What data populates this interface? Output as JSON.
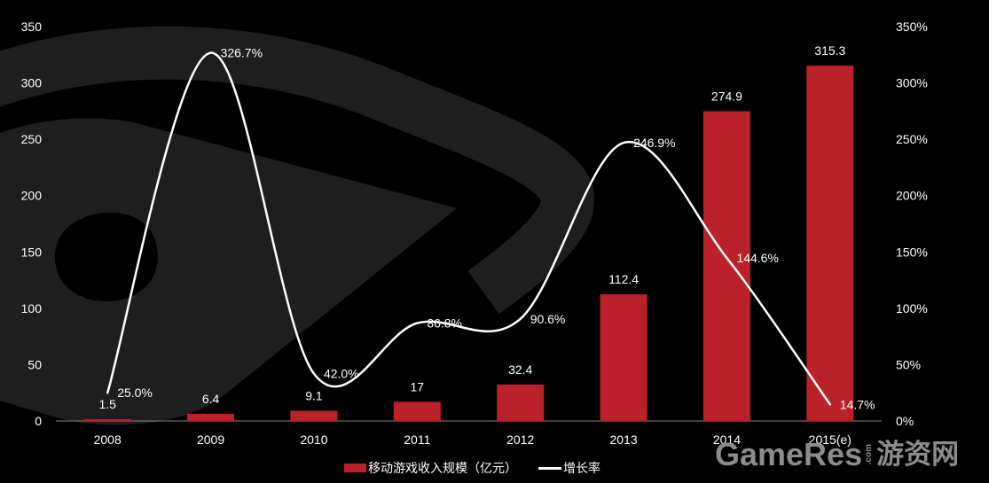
{
  "chart_data": {
    "type": "bar",
    "title": "",
    "xlabel": "",
    "ylabel": "",
    "categories": [
      "2008",
      "2009",
      "2010",
      "2011",
      "2012",
      "2013",
      "2014",
      "2015(e)"
    ],
    "y_left": {
      "min": 0,
      "max": 350,
      "ticks": [
        0,
        50,
        100,
        150,
        200,
        250,
        300,
        350
      ],
      "tick_labels": [
        "0",
        "50",
        "100",
        "150",
        "200",
        "250",
        "300",
        "350"
      ]
    },
    "y_right": {
      "min": 0,
      "max": 350,
      "unit": "%",
      "ticks": [
        0,
        50,
        100,
        150,
        200,
        250,
        300,
        350
      ],
      "tick_labels": [
        "0%",
        "50%",
        "100%",
        "150%",
        "200%",
        "250%",
        "300%",
        "350%"
      ]
    },
    "series": [
      {
        "name": "移动游戏收入规模（亿元）",
        "type": "bar",
        "axis": "left",
        "values": [
          1.5,
          6.4,
          9.1,
          17,
          32.4,
          112.4,
          274.9,
          315.3
        ],
        "labels": [
          "1.5",
          "6.4",
          "9.1",
          "17",
          "32.4",
          "112.4",
          "274.9",
          "315.3"
        ]
      },
      {
        "name": "增长率",
        "type": "line",
        "axis": "right",
        "smooth": true,
        "values": [
          25.0,
          326.7,
          42.0,
          86.8,
          90.6,
          246.9,
          144.6,
          14.7
        ],
        "labels": [
          "25.0%",
          "326.7%",
          "42.0%",
          "86.8%",
          "90.6%",
          "246.9%",
          "144.6%",
          "14.7%"
        ]
      }
    ],
    "grid": false,
    "legend": "bottom"
  },
  "watermark": {
    "brand": "GameRes",
    "domain": ".com",
    "brand_cn": "游资网"
  },
  "colors": {
    "background": "#000000",
    "bar": "#BA2129",
    "line": "#FFFFFF",
    "text": "#FFFFFF",
    "axis": "#7F7F7F",
    "decor": "#1E1E1E",
    "watermark": "#8C8C8C"
  }
}
